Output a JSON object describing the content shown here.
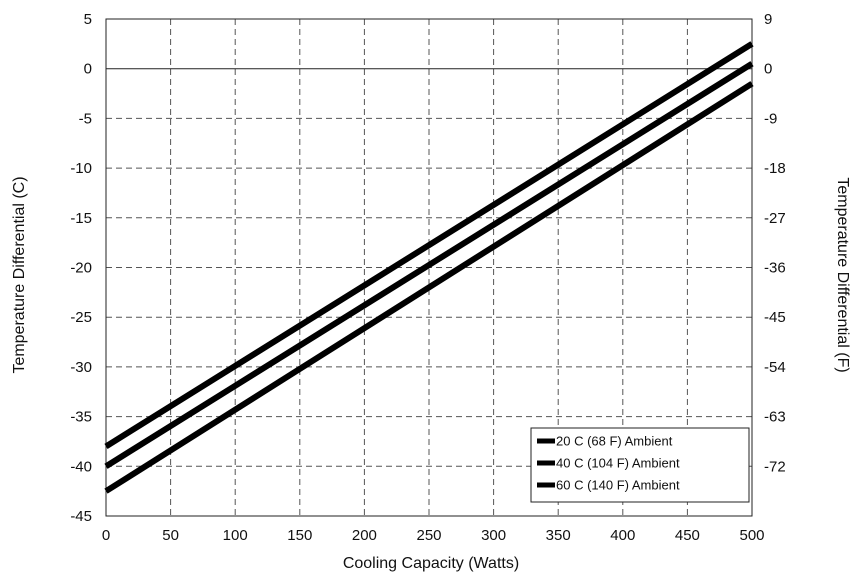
{
  "chart_data": {
    "type": "line",
    "xlabel": "Cooling Capacity (Watts)",
    "ylabel": "Temperature Differential (C)",
    "y2label": "Temperature Differential (F)",
    "xlim": [
      0,
      500
    ],
    "ylim": [
      -45,
      5
    ],
    "y2lim": [
      -81,
      9
    ],
    "xticks": [
      0,
      50,
      100,
      150,
      200,
      250,
      300,
      350,
      400,
      450,
      500
    ],
    "yticks": [
      5,
      0,
      -5,
      -10,
      -15,
      -20,
      -25,
      -30,
      -35,
      -40,
      -45
    ],
    "y2ticks": [
      9,
      0,
      -9,
      -18,
      -27,
      -36,
      -45,
      -54,
      -63,
      -72
    ],
    "grid": true,
    "reference_line_y": 0,
    "legend": "bottom-right",
    "series": [
      {
        "name": "20 C (68 F) Ambient",
        "x": [
          0,
          500
        ],
        "y": [
          -38,
          2.5
        ]
      },
      {
        "name": "40 C (104 F) Ambient",
        "x": [
          0,
          500
        ],
        "y": [
          -40,
          0.5
        ]
      },
      {
        "name": "60 C (140 F) Ambient",
        "x": [
          0,
          500
        ],
        "y": [
          -42.5,
          -1.5
        ]
      }
    ]
  }
}
